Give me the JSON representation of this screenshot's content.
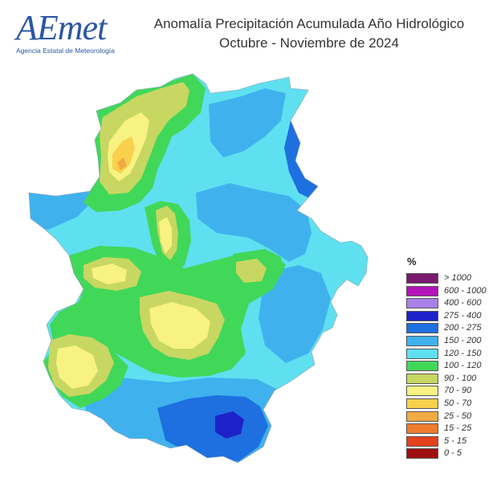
{
  "logo": {
    "text": "AEmet",
    "subtitle": "Agencia Estatal de Meteorología"
  },
  "title": {
    "line1": "Anomalía Precipitación Acumulada Año Hidrológico",
    "line2": "Octubre - Noviembre de 2024"
  },
  "legend": {
    "title": "%",
    "items": [
      {
        "label": "> 1000",
        "color": "#7a1a6e"
      },
      {
        "label": "600 - 1000",
        "color": "#b314b8"
      },
      {
        "label": "400 - 600",
        "color": "#a981e8"
      },
      {
        "label": "275 - 400",
        "color": "#1d22c8"
      },
      {
        "label": "200 - 275",
        "color": "#1e6fe0"
      },
      {
        "label": "150 - 200",
        "color": "#3fb2ee"
      },
      {
        "label": "120 - 150",
        "color": "#5fe0f0"
      },
      {
        "label": "100 - 120",
        "color": "#41d759"
      },
      {
        "label": "90 - 100",
        "color": "#c7d762"
      },
      {
        "label": "70 - 90",
        "color": "#f7f282"
      },
      {
        "label": "50 - 70",
        "color": "#f8d04c"
      },
      {
        "label": "25 - 50",
        "color": "#f2aa44"
      },
      {
        "label": "15 - 25",
        "color": "#ee7c2b"
      },
      {
        "label": "5 - 15",
        "color": "#e4421c"
      },
      {
        "label": "0 - 5",
        "color": "#9e0f0f"
      }
    ]
  }
}
